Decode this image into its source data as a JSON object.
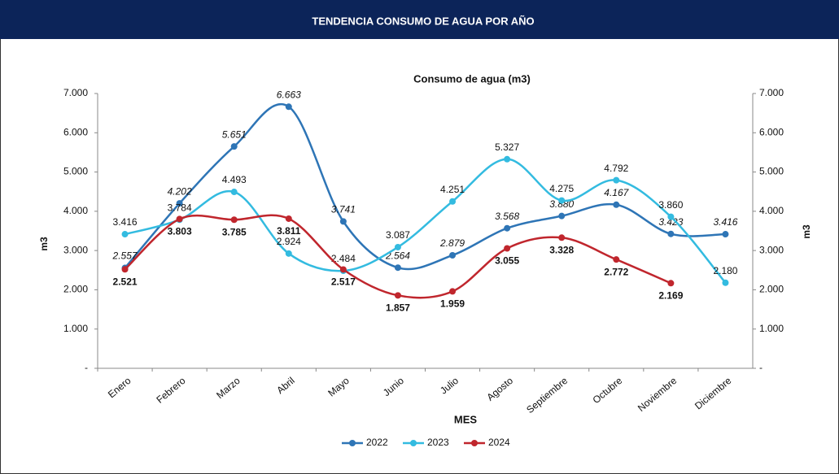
{
  "chart_data": {
    "type": "line",
    "header": "TENDENCIA CONSUMO DE AGUA POR AÑO",
    "title": "Consumo de agua (m3)",
    "x_label": "MES",
    "y_label": "m3",
    "y2_label": "m3",
    "categories": [
      "Enero",
      "Febrero",
      "Marzo",
      "Abril",
      "Mayo",
      "Junio",
      "Julio",
      "Agosto",
      "Septiembre",
      "Octubre",
      "Noviembre",
      "Diciembre"
    ],
    "ylim": [
      0,
      7000
    ],
    "yticks": [
      {
        "value": 0,
        "label": "-"
      },
      {
        "value": 1000,
        "label": "1.000"
      },
      {
        "value": 2000,
        "label": "2.000"
      },
      {
        "value": 3000,
        "label": "3.000"
      },
      {
        "value": 4000,
        "label": "4.000"
      },
      {
        "value": 5000,
        "label": "5.000"
      },
      {
        "value": 6000,
        "label": "6.000"
      },
      {
        "value": 7000,
        "label": "7.000"
      }
    ],
    "y2lim": [
      0,
      7000
    ],
    "y2ticks": [
      {
        "value": 0,
        "label": "-"
      },
      {
        "value": 1000,
        "label": "1.000"
      },
      {
        "value": 2000,
        "label": "2.000"
      },
      {
        "value": 3000,
        "label": "3.000"
      },
      {
        "value": 4000,
        "label": "4.000"
      },
      {
        "value": 5000,
        "label": "5.000"
      },
      {
        "value": 6000,
        "label": "6.000"
      },
      {
        "value": 7000,
        "label": "7.000"
      }
    ],
    "legend": "bottom",
    "series": [
      {
        "name": "2022",
        "color": "#2e75b6",
        "values": [
          2557,
          4202,
          5651,
          6663,
          3741,
          2564,
          2879,
          3568,
          3880,
          4167,
          3423,
          3416
        ],
        "value_labels": [
          "2.557",
          "4.202",
          "5.651",
          "6.663",
          "3.741",
          "2.564",
          "2.879",
          "3.568",
          "3.880",
          "4.167",
          "3.423",
          "3.416"
        ]
      },
      {
        "name": "2023",
        "color": "#33bbe0",
        "values": [
          3416,
          3784,
          4493,
          2924,
          2484,
          3087,
          4251,
          5327,
          4275,
          4792,
          3860,
          2180
        ],
        "value_labels": [
          "3.416",
          "3.784",
          "4.493",
          "2.924",
          "2.484",
          "3.087",
          "4.251",
          "5.327",
          "4.275",
          "4.792",
          "3.860",
          "2.180"
        ]
      },
      {
        "name": "2024",
        "color": "#c0262d",
        "values": [
          2521,
          3803,
          3785,
          3811,
          2517,
          1857,
          1959,
          3055,
          3328,
          2772,
          2169,
          null
        ],
        "value_labels": [
          "2.521",
          "3.803",
          "3.785",
          "3.811",
          "2.517",
          "1.857",
          "1.959",
          "3.055",
          "3.328",
          "2.772",
          "2.169",
          null
        ]
      }
    ]
  }
}
